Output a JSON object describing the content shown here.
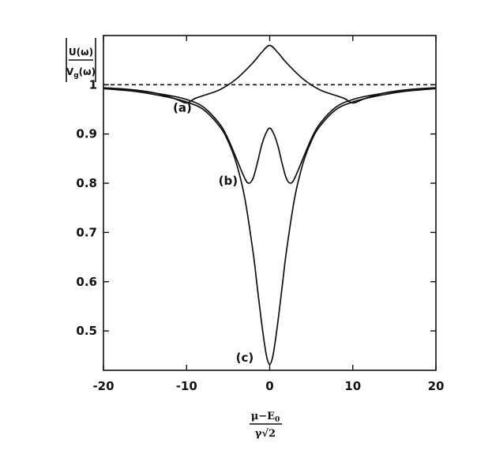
{
  "chart_data": {
    "type": "line",
    "xlim": [
      -20,
      20
    ],
    "ylim": [
      0.42,
      1.1
    ],
    "x_ticks": [
      -20,
      -10,
      0,
      10,
      20
    ],
    "y_ticks": [
      0.5,
      0.6,
      0.7,
      0.8,
      0.9,
      1
    ],
    "x_tick_labels": [
      "-20",
      "-10",
      "0",
      "10",
      "20"
    ],
    "y_tick_labels": [
      "0.5",
      "0.6",
      "0.7",
      "0.8",
      "0.9",
      "1"
    ],
    "ylabel": {
      "numerator": "U(ω)",
      "denominator_main": "V",
      "denominator_sub": "g",
      "denominator_rest": "(ω)"
    },
    "xlabel": {
      "numerator_main": "μ−E",
      "numerator_sub": "0",
      "denominator": "γ√2"
    },
    "grid": false,
    "reference_line": {
      "y": 1,
      "style": "dashed"
    },
    "series": [
      {
        "label": "(a)",
        "x": [
          -20,
          -18,
          -16,
          -14,
          -12,
          -11,
          -10,
          -9,
          -8,
          -6,
          -4,
          -2,
          -1,
          0,
          1,
          2,
          4,
          6,
          8,
          9,
          10,
          11,
          12,
          14,
          16,
          18,
          20
        ],
        "values": [
          0.994,
          0.992,
          0.989,
          0.984,
          0.975,
          0.969,
          0.963,
          0.972,
          0.978,
          0.99,
          1.012,
          1.045,
          1.065,
          1.08,
          1.065,
          1.045,
          1.012,
          0.99,
          0.978,
          0.972,
          0.963,
          0.969,
          0.975,
          0.984,
          0.989,
          0.992,
          0.994
        ]
      },
      {
        "label": "(b)",
        "x": [
          -20,
          -16,
          -12,
          -10,
          -8,
          -6,
          -5,
          -4,
          -3,
          -2.5,
          -2,
          -1.5,
          -1,
          -0.5,
          0,
          0.5,
          1,
          1.5,
          2,
          2.5,
          3,
          4,
          5,
          6,
          8,
          10,
          12,
          16,
          20
        ],
        "values": [
          0.993,
          0.988,
          0.978,
          0.97,
          0.955,
          0.92,
          0.89,
          0.85,
          0.81,
          0.8,
          0.81,
          0.84,
          0.875,
          0.9,
          0.912,
          0.9,
          0.875,
          0.84,
          0.81,
          0.8,
          0.81,
          0.85,
          0.89,
          0.92,
          0.955,
          0.97,
          0.978,
          0.988,
          0.993
        ]
      },
      {
        "label": "(c)",
        "x": [
          -20,
          -16,
          -12,
          -10,
          -8,
          -6,
          -5,
          -4,
          -3,
          -2,
          -1.5,
          -1,
          -0.5,
          -0.25,
          0,
          0.25,
          0.5,
          1,
          1.5,
          2,
          3,
          4,
          5,
          6,
          8,
          10,
          12,
          16,
          20
        ],
        "values": [
          0.992,
          0.986,
          0.974,
          0.965,
          0.95,
          0.915,
          0.885,
          0.84,
          0.77,
          0.66,
          0.59,
          0.52,
          0.46,
          0.44,
          0.432,
          0.44,
          0.46,
          0.52,
          0.59,
          0.66,
          0.77,
          0.84,
          0.885,
          0.915,
          0.95,
          0.965,
          0.974,
          0.986,
          0.992
        ]
      }
    ],
    "annotations": [
      {
        "text": "(a)",
        "x": -10.5,
        "y": 0.945
      },
      {
        "text": "(b)",
        "x": -5,
        "y": 0.797
      },
      {
        "text": "(c)",
        "x": -3,
        "y": 0.438
      }
    ]
  }
}
